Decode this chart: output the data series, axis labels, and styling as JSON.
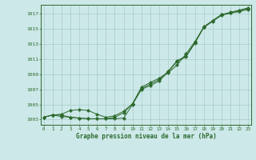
{
  "x": [
    0,
    1,
    2,
    3,
    4,
    5,
    6,
    7,
    8,
    9,
    10,
    11,
    12,
    13,
    14,
    15,
    16,
    17,
    18,
    19,
    20,
    21,
    22,
    23
  ],
  "line1": [
    1003.3,
    1003.6,
    1003.6,
    1003.3,
    1003.2,
    1003.1,
    1003.1,
    1003.1,
    1003.1,
    1003.2,
    1005.0,
    1007.0,
    1007.5,
    1008.1,
    1009.3,
    1010.7,
    1011.3,
    1013.1,
    1015.2,
    1016.0,
    1016.8,
    1017.1,
    1017.4,
    1017.7
  ],
  "line2": [
    1003.3,
    1003.6,
    1003.4,
    1003.3,
    1003.2,
    1003.1,
    1003.1,
    1003.1,
    1003.3,
    1003.9,
    1005.1,
    1007.1,
    1007.7,
    1008.3,
    1009.4,
    1010.8,
    1011.4,
    1013.2,
    1015.3,
    1016.1,
    1016.9,
    1017.2,
    1017.5,
    1017.8
  ],
  "line3": [
    1003.3,
    1003.6,
    1003.7,
    1004.2,
    1004.3,
    1004.2,
    1003.7,
    1003.3,
    1003.5,
    1004.1,
    1005.1,
    1007.3,
    1007.9,
    1008.5,
    1009.2,
    1010.2,
    1011.7,
    1013.3,
    1015.2,
    1016.1,
    1016.9,
    1017.1,
    1017.3,
    1017.6
  ],
  "line_color": "#2d6a2d",
  "bg_color": "#cce8e8",
  "plot_bg": "#cce8e8",
  "grid_color": "#aacccc",
  "title": "Graphe pression niveau de la mer (hPa)",
  "yticks": [
    1003,
    1005,
    1007,
    1009,
    1011,
    1013,
    1015,
    1017
  ],
  "xticks": [
    0,
    1,
    2,
    3,
    4,
    5,
    6,
    7,
    8,
    9,
    10,
    11,
    12,
    13,
    14,
    15,
    16,
    17,
    18,
    19,
    20,
    21,
    22,
    23
  ],
  "ylim": [
    1002.3,
    1018.2
  ],
  "xlim": [
    -0.3,
    23.3
  ]
}
